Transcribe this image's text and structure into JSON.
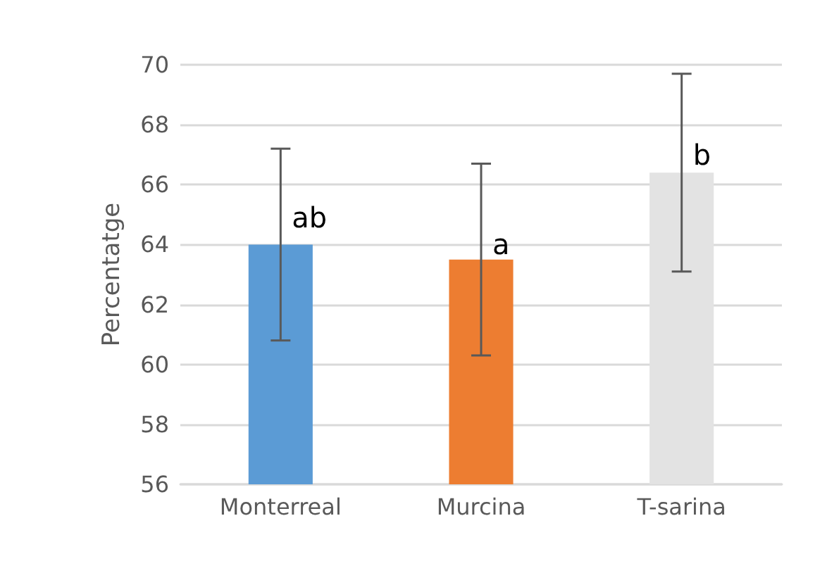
{
  "chart_data": {
    "type": "bar",
    "ylabel": "Percentatge",
    "categories": [
      "Monterreal",
      "Murcina",
      "T-sarina"
    ],
    "values": [
      64.0,
      63.5,
      66.4
    ],
    "colors": [
      "#5b9bd5",
      "#ed7d31",
      "#e3e3e3"
    ],
    "errors": [
      3.2,
      3.2,
      3.3
    ],
    "ylim": [
      56,
      70
    ],
    "yticks": [
      56,
      58,
      60,
      62,
      64,
      66,
      68,
      70
    ],
    "grid": "y",
    "annotations": [
      {
        "text": "ab",
        "x": "Monterreal",
        "y": 64.9
      },
      {
        "text": "a",
        "x": "Murcina",
        "y": 64.0
      },
      {
        "text": "b",
        "x": "T-sarina",
        "y": 67.0
      }
    ]
  }
}
